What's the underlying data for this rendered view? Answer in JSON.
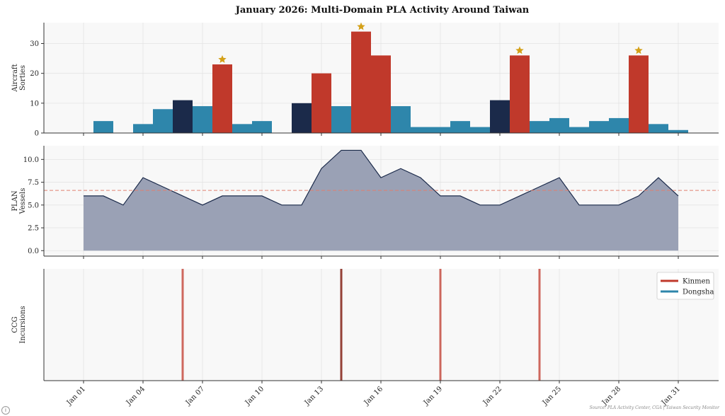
{
  "chart_data": {
    "title": "January 2026: Multi-Domain PLA Activity Around Taiwan",
    "source": "Source: PLA Activity Center, CGA | Taiwan Security Monitor",
    "x_dates": [
      "Jan 01",
      "Jan 02",
      "Jan 03",
      "Jan 04",
      "Jan 05",
      "Jan 06",
      "Jan 07",
      "Jan 08",
      "Jan 09",
      "Jan 10",
      "Jan 11",
      "Jan 12",
      "Jan 13",
      "Jan 14",
      "Jan 15",
      "Jan 16",
      "Jan 17",
      "Jan 18",
      "Jan 19",
      "Jan 20",
      "Jan 21",
      "Jan 22",
      "Jan 23",
      "Jan 24",
      "Jan 25",
      "Jan 26",
      "Jan 27",
      "Jan 28",
      "Jan 29",
      "Jan 30",
      "Jan 31"
    ],
    "x_tick_labels": [
      "Jan 01",
      "Jan 04",
      "Jan 07",
      "Jan 10",
      "Jan 13",
      "Jan 16",
      "Jan 19",
      "Jan 22",
      "Jan 25",
      "Jan 28",
      "Jan 31"
    ],
    "colors": {
      "normal": "#2e86ab",
      "elevated": "#1b2a4a",
      "surge": "#c0392b",
      "star": "#d4a017",
      "vessels_fill": "#9aa1b5",
      "vessels_line": "#1b2a4a",
      "mean_line": "#e08070",
      "kinmen": "#c0392b",
      "dongsha": "#2e86ab"
    },
    "panels": [
      {
        "type": "bar",
        "ylabel": [
          "Aircraft",
          "Sorties"
        ],
        "ylim": [
          0,
          37
        ],
        "yticks": [
          0,
          10,
          20,
          30
        ],
        "yticklabels": [
          "0",
          "10",
          "20",
          "30"
        ],
        "values": [
          0,
          4,
          0,
          3,
          8,
          11,
          9,
          23,
          3,
          4,
          0,
          10,
          20,
          9,
          34,
          26,
          9,
          2,
          2,
          4,
          2,
          11,
          26,
          4,
          5,
          2,
          4,
          5,
          26,
          3,
          1
        ],
        "levels": [
          "normal",
          "normal",
          "normal",
          "normal",
          "normal",
          "elevated",
          "normal",
          "surge",
          "normal",
          "normal",
          "normal",
          "elevated",
          "surge",
          "normal",
          "surge",
          "surge",
          "normal",
          "normal",
          "normal",
          "normal",
          "normal",
          "elevated",
          "surge",
          "normal",
          "normal",
          "normal",
          "normal",
          "normal",
          "surge",
          "normal",
          "normal"
        ],
        "stars": [
          "Jan 08",
          "Jan 15",
          "Jan 23",
          "Jan 29"
        ]
      },
      {
        "type": "area",
        "ylabel": [
          "PLAN",
          "Vessels"
        ],
        "ylim": [
          -0.6,
          11.5
        ],
        "yticks": [
          0,
          2.5,
          5,
          7.5,
          10
        ],
        "yticklabels": [
          "0.0",
          "2.5",
          "5.0",
          "7.5",
          "10.0"
        ],
        "values": [
          6,
          6,
          5,
          8,
          7,
          6,
          5,
          6,
          6,
          6,
          5,
          5,
          9,
          11,
          11,
          8,
          9,
          8,
          6,
          6,
          5,
          5,
          6,
          7,
          8,
          5,
          5,
          5,
          6,
          8,
          6
        ],
        "mean": 6.6
      },
      {
        "type": "events",
        "ylabel": [
          "CCG",
          "Incursions"
        ],
        "events": [
          {
            "date": "Jan 06",
            "location": "Kinmen"
          },
          {
            "date": "Jan 14",
            "location": "Kinmen"
          },
          {
            "date": "Jan 19",
            "location": "Kinmen"
          },
          {
            "date": "Jan 24",
            "location": "Kinmen"
          }
        ],
        "legend": [
          "Kinmen",
          "Dongsha"
        ],
        "legend_position": "top-right"
      }
    ]
  }
}
